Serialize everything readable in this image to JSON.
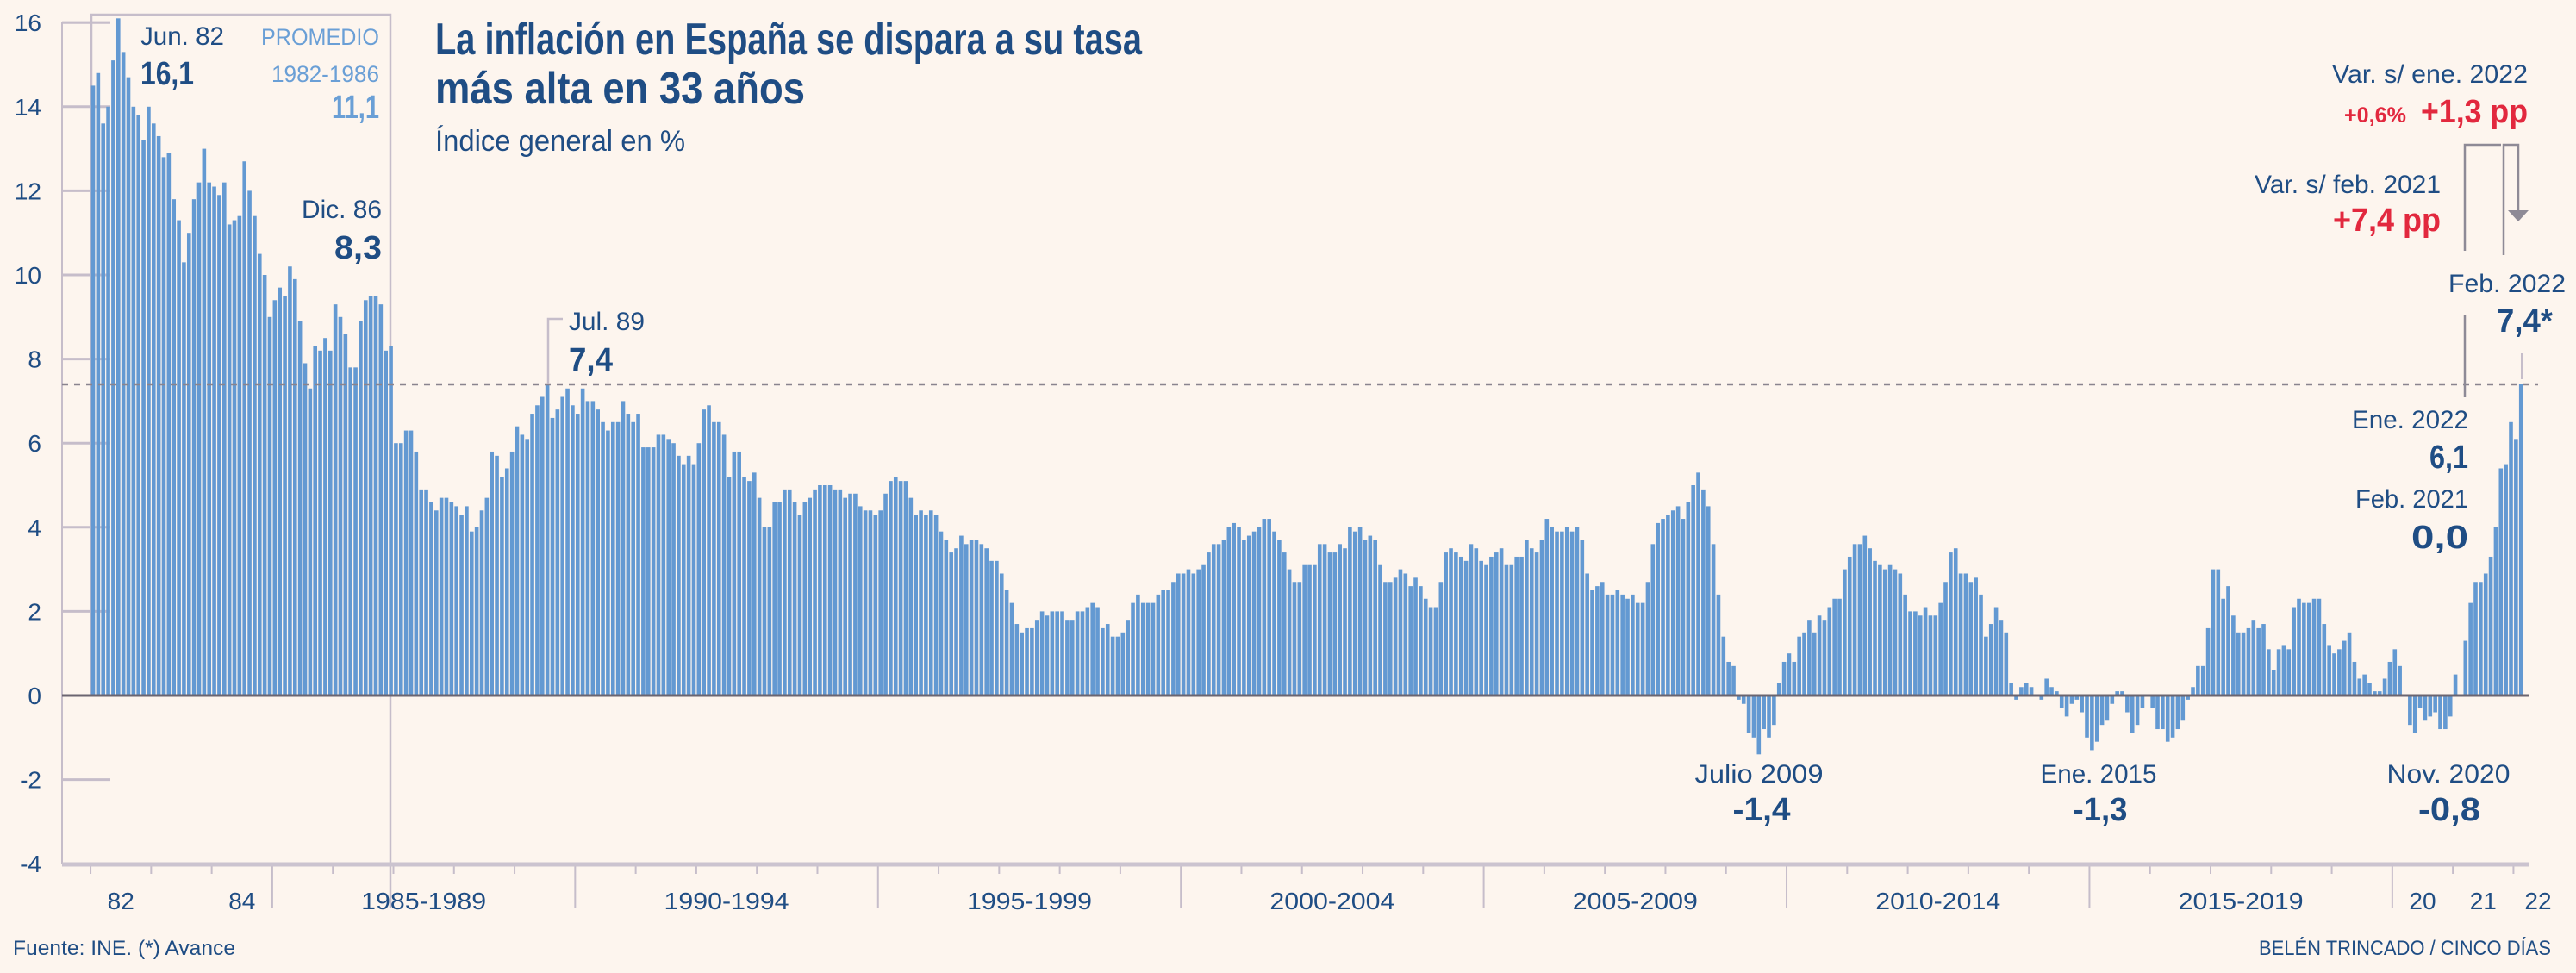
{
  "title": {
    "line1": "La inflación en España se dispara a su tasa",
    "line2": "más alta en 33 años"
  },
  "subtitle": "Índice general en %",
  "annotations": {
    "jun82": {
      "label": "Jun. 82",
      "value": "16,1"
    },
    "average": {
      "label": "PROMEDIO",
      "period": "1982-1986",
      "value": "11,1"
    },
    "dec86": {
      "label": "Dic. 86",
      "value": "8,3"
    },
    "jul89": {
      "label": "Jul. 89",
      "value": "7,4"
    },
    "var_jan22": {
      "label": "Var. s/ ene. 2022",
      "pct": "+0,6%",
      "value": "+1,3 pp"
    },
    "var_feb21": {
      "label": "Var. s/ feb. 2021",
      "value": "+7,4 pp"
    },
    "feb22": {
      "label": "Feb. 2022",
      "value": "7,4*"
    },
    "jan22": {
      "label": "Ene. 2022",
      "value": "6,1"
    },
    "feb21": {
      "label": "Feb. 2021",
      "value": "0,0"
    },
    "jul09": {
      "label": "Julio 2009",
      "value": "-1,4"
    },
    "jan15": {
      "label": "Ene. 2015",
      "value": "-1,3"
    },
    "nov20": {
      "label": "Nov. 2020",
      "value": "-0,8"
    }
  },
  "footer": {
    "source": "Fuente: INE. (*) Avance",
    "credit": "BELÉN TRINCADO / CINCO DÍAS"
  },
  "colors": {
    "bar": "#6399d2",
    "text": "#1f4d84",
    "highlight": "#e2283e",
    "average": "#6a9fd6",
    "background": "#fdf5ee"
  },
  "chart_data": {
    "type": "bar",
    "title": "La inflación en España se dispara a su tasa más alta en 33 años",
    "ylabel": "Índice general en %",
    "frequency": "monthly",
    "start": "1982-01",
    "end": "2022-02",
    "ylim": [
      -4,
      16
    ],
    "y_ticks": [
      16,
      14,
      12,
      10,
      8,
      6,
      4,
      2,
      0,
      -2,
      -4
    ],
    "y_tick_labels": [
      "16",
      "14",
      "12",
      "10",
      "8",
      "6",
      "4",
      "2",
      "0",
      "-2",
      "-4"
    ],
    "x_labels": [
      "82",
      "84",
      "1985-1989",
      "1990-1994",
      "1995-1999",
      "2000-2004",
      "2005-2009",
      "2010-2014",
      "2015-2019",
      "20",
      "21",
      "22"
    ],
    "reference_line": 7.4,
    "average_1982_1986": 11.1,
    "values": [
      14.5,
      14.8,
      13.6,
      14.0,
      15.1,
      16.1,
      15.3,
      14.7,
      14.0,
      13.8,
      13.2,
      14.0,
      13.6,
      13.3,
      12.8,
      12.9,
      11.8,
      11.3,
      10.3,
      11.0,
      11.8,
      12.2,
      13.0,
      12.2,
      12.1,
      11.9,
      12.2,
      11.2,
      11.3,
      11.4,
      12.7,
      12.0,
      11.4,
      10.5,
      10.0,
      9.0,
      9.4,
      9.7,
      9.5,
      10.2,
      9.9,
      8.9,
      7.9,
      7.3,
      8.3,
      8.2,
      8.5,
      8.2,
      9.3,
      9.0,
      8.6,
      7.8,
      7.8,
      8.9,
      9.4,
      9.5,
      9.5,
      9.3,
      8.2,
      8.3,
      6.0,
      6.0,
      6.3,
      6.3,
      5.8,
      4.9,
      4.9,
      4.6,
      4.4,
      4.7,
      4.7,
      4.6,
      4.5,
      4.3,
      4.5,
      3.9,
      4.0,
      4.4,
      4.7,
      5.8,
      5.7,
      5.2,
      5.4,
      5.8,
      6.4,
      6.2,
      6.1,
      6.7,
      6.9,
      7.1,
      7.4,
      6.6,
      6.8,
      7.1,
      7.3,
      6.9,
      6.7,
      7.3,
      7.0,
      7.0,
      6.8,
      6.5,
      6.3,
      6.5,
      6.5,
      7.0,
      6.7,
      6.5,
      6.7,
      5.9,
      5.9,
      5.9,
      6.2,
      6.2,
      6.1,
      6.0,
      5.7,
      5.5,
      5.7,
      5.5,
      6.0,
      6.8,
      6.9,
      6.5,
      6.5,
      6.2,
      5.2,
      5.8,
      5.8,
      5.2,
      5.1,
      5.3,
      4.7,
      4.0,
      4.0,
      4.6,
      4.6,
      4.9,
      4.9,
      4.6,
      4.3,
      4.6,
      4.7,
      4.9,
      5.0,
      5.0,
      5.0,
      4.9,
      4.9,
      4.7,
      4.8,
      4.8,
      4.5,
      4.4,
      4.4,
      4.3,
      4.4,
      4.8,
      5.1,
      5.2,
      5.1,
      5.1,
      4.7,
      4.3,
      4.4,
      4.3,
      4.4,
      4.3,
      3.9,
      3.7,
      3.4,
      3.5,
      3.8,
      3.6,
      3.7,
      3.7,
      3.6,
      3.5,
      3.2,
      3.2,
      2.9,
      2.5,
      2.2,
      1.7,
      1.5,
      1.6,
      1.6,
      1.8,
      2.0,
      1.9,
      2.0,
      2.0,
      2.0,
      1.8,
      1.8,
      2.0,
      2.0,
      2.1,
      2.2,
      2.1,
      1.6,
      1.7,
      1.4,
      1.4,
      1.5,
      1.8,
      2.2,
      2.4,
      2.2,
      2.2,
      2.2,
      2.4,
      2.5,
      2.5,
      2.7,
      2.9,
      2.9,
      3.0,
      2.9,
      3.0,
      3.1,
      3.4,
      3.6,
      3.6,
      3.7,
      4.0,
      4.1,
      4.0,
      3.7,
      3.8,
      3.9,
      4.0,
      4.2,
      4.2,
      3.9,
      3.7,
      3.4,
      3.0,
      2.7,
      2.7,
      3.1,
      3.1,
      3.1,
      3.6,
      3.6,
      3.4,
      3.4,
      3.6,
      3.5,
      4.0,
      3.9,
      4.0,
      3.7,
      3.8,
      3.7,
      3.1,
      2.7,
      2.7,
      2.8,
      3.0,
      2.9,
      2.6,
      2.8,
      2.6,
      2.3,
      2.1,
      2.1,
      2.7,
      3.4,
      3.5,
      3.4,
      3.3,
      3.2,
      3.6,
      3.5,
      3.2,
      3.1,
      3.3,
      3.4,
      3.5,
      3.1,
      3.1,
      3.3,
      3.3,
      3.7,
      3.5,
      3.4,
      3.7,
      4.2,
      4.0,
      3.9,
      3.9,
      4.0,
      3.9,
      4.0,
      3.7,
      2.9,
      2.5,
      2.6,
      2.7,
      2.4,
      2.4,
      2.5,
      2.4,
      2.3,
      2.4,
      2.2,
      2.2,
      2.7,
      3.6,
      4.1,
      4.2,
      4.3,
      4.4,
      4.5,
      4.2,
      4.6,
      5.0,
      5.3,
      4.9,
      4.5,
      3.6,
      2.4,
      1.4,
      0.8,
      0.7,
      -0.1,
      -0.2,
      -0.9,
      -1.0,
      -1.4,
      -0.8,
      -1.0,
      -0.7,
      0.3,
      0.8,
      1.0,
      0.8,
      1.4,
      1.5,
      1.8,
      1.5,
      1.9,
      1.8,
      2.1,
      2.3,
      2.3,
      3.0,
      3.3,
      3.6,
      3.6,
      3.8,
      3.5,
      3.2,
      3.1,
      3.0,
      3.1,
      3.0,
      2.9,
      2.4,
      2.0,
      2.0,
      1.9,
      2.1,
      1.9,
      1.9,
      2.2,
      2.7,
      3.4,
      3.5,
      2.9,
      2.9,
      2.7,
      2.8,
      2.4,
      1.4,
      1.7,
      2.1,
      1.8,
      1.5,
      0.3,
      -0.1,
      0.2,
      0.3,
      0.2,
      0.0,
      -0.1,
      0.4,
      0.2,
      0.1,
      -0.3,
      -0.5,
      -0.2,
      -0.1,
      -0.4,
      -1.0,
      -1.3,
      -1.1,
      -0.7,
      -0.6,
      -0.2,
      0.1,
      0.1,
      -0.4,
      -0.9,
      -0.7,
      -0.3,
      0.0,
      -0.3,
      -0.8,
      -0.8,
      -1.1,
      -1.0,
      -0.8,
      -0.6,
      -0.1,
      0.2,
      0.7,
      0.7,
      1.6,
      3.0,
      3.0,
      2.3,
      2.6,
      1.9,
      1.5,
      1.5,
      1.6,
      1.8,
      1.6,
      1.7,
      1.1,
      0.6,
      1.1,
      1.2,
      1.1,
      2.1,
      2.3,
      2.2,
      2.2,
      2.3,
      2.3,
      1.7,
      1.2,
      1.0,
      1.1,
      1.3,
      1.5,
      0.8,
      0.4,
      0.5,
      0.3,
      0.1,
      0.1,
      0.4,
      0.8,
      1.1,
      0.7,
      0.0,
      -0.7,
      -0.9,
      -0.3,
      -0.6,
      -0.5,
      -0.4,
      -0.8,
      -0.8,
      -0.5,
      0.5,
      0.0,
      1.3,
      2.2,
      2.7,
      2.7,
      2.9,
      3.3,
      4.0,
      5.4,
      5.5,
      6.5,
      6.1,
      7.4
    ]
  }
}
